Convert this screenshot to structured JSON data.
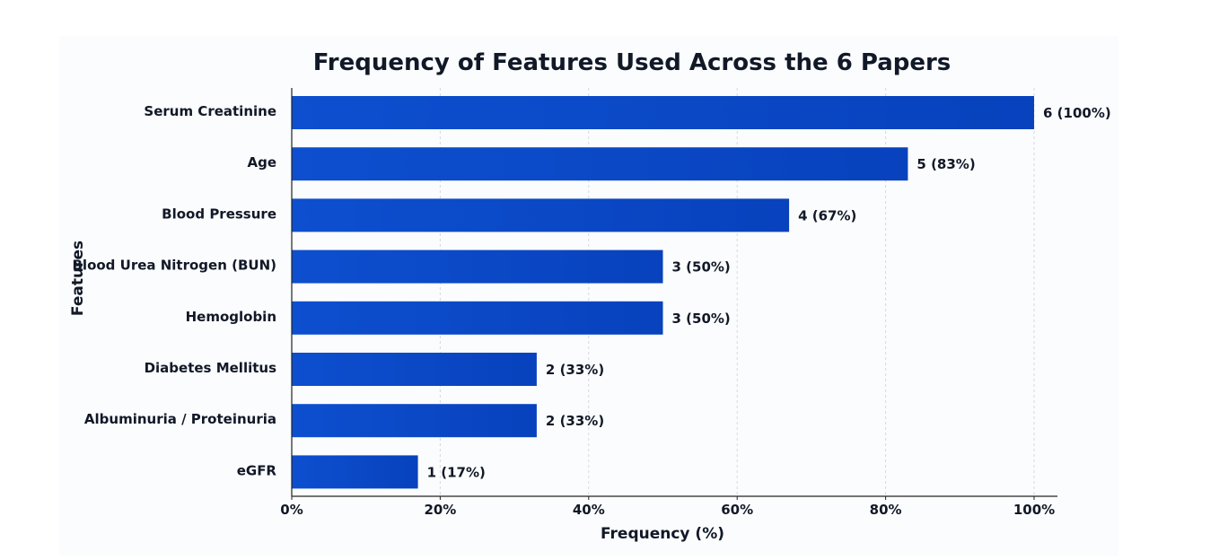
{
  "chart_data": {
    "type": "bar",
    "orientation": "horizontal",
    "title": "Frequency of Features Used Across the 6 Papers",
    "xlabel": "Frequency (%)",
    "ylabel": "Features",
    "xlim": [
      0,
      100
    ],
    "xticks": [
      0,
      20,
      40,
      60,
      80,
      100
    ],
    "xtick_labels": [
      "0%",
      "20%",
      "40%",
      "60%",
      "80%",
      "100%"
    ],
    "grid": "vertical dashed",
    "bar_color": "#0a47c4",
    "categories": [
      "Serum Creatinine",
      "Age",
      "Blood Pressure",
      "Blood Urea Nitrogen (BUN)",
      "Hemoglobin",
      "Diabetes Mellitus",
      "Albuminuria / Proteinuria",
      "eGFR"
    ],
    "counts": [
      6,
      5,
      4,
      3,
      3,
      2,
      2,
      1
    ],
    "values": [
      100,
      83,
      67,
      50,
      50,
      33,
      33,
      17
    ],
    "data_labels": [
      "6 (100%)",
      "5 (83%)",
      "4 (67%)",
      "3 (50%)",
      "3 (50%)",
      "2 (33%)",
      "2 (33%)",
      "1 (17%)"
    ]
  }
}
